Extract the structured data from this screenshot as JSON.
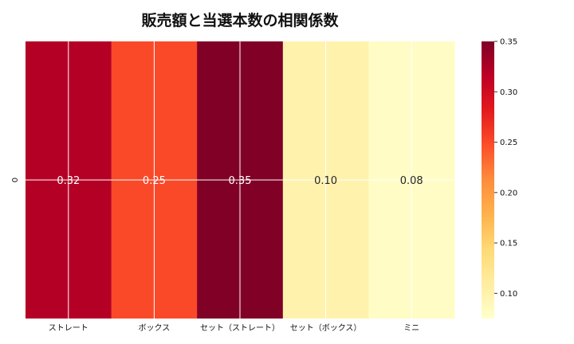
{
  "chart_data": {
    "type": "heatmap",
    "title": "販売額と当選本数の相関係数",
    "rows": [
      "0"
    ],
    "columns": [
      "ストレート",
      "ボックス",
      "セット（ストレート）",
      "セット（ボックス）",
      "ミニ"
    ],
    "values": [
      [
        0.32,
        0.25,
        0.35,
        0.1,
        0.08
      ]
    ],
    "value_labels": [
      "0.32",
      "0.25",
      "0.35",
      "0.10",
      "0.08"
    ],
    "colorbar": {
      "min": 0.075,
      "max": 0.35,
      "ticks": [
        0.1,
        0.15,
        0.2,
        0.25,
        0.3,
        0.35
      ],
      "tick_labels": [
        "0.10",
        "0.15",
        "0.20",
        "0.25",
        "0.30",
        "0.35"
      ]
    },
    "colormap": [
      "#ffffcc",
      "#ffeda0",
      "#fed976",
      "#feb24c",
      "#fd8d3c",
      "#fc4e2a",
      "#e31a1c",
      "#bd0026",
      "#800026"
    ],
    "grid": true
  }
}
